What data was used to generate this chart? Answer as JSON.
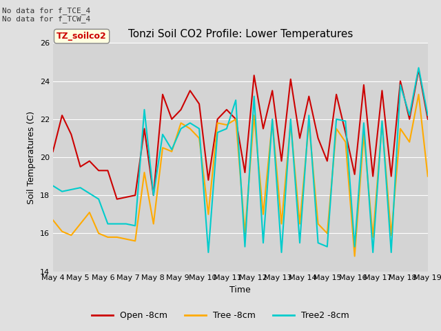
{
  "title": "Tonzi Soil CO2 Profile: Lower Temperatures",
  "xlabel": "Time",
  "ylabel": "Soil Temperatures (C)",
  "ylim": [
    14,
    26
  ],
  "yticks": [
    14,
    16,
    18,
    20,
    22,
    24,
    26
  ],
  "fig_bg_color": "#e0e0e0",
  "plot_bg_color": "#d4d4d4",
  "annotation_top_left": "No data for f_TCE_4\nNo data for f_TCW_4",
  "legend_label_box": "TZ_soilco2",
  "legend_entries": [
    "Open -8cm",
    "Tree -8cm",
    "Tree2 -8cm"
  ],
  "line_colors": [
    "#cc0000",
    "#ffaa00",
    "#00cccc"
  ],
  "xtick_labels": [
    "May 4",
    "May 5",
    "May 6",
    "May 7",
    "May 8",
    "May 9",
    "May 10",
    "May 11",
    "May 12",
    "May 13",
    "May 14",
    "May 15",
    "May 16",
    "May 17",
    "May 18",
    "May 19"
  ],
  "open_data": [
    20.3,
    22.2,
    21.2,
    19.5,
    19.8,
    19.3,
    19.3,
    17.8,
    17.9,
    18.0,
    21.5,
    18.0,
    23.3,
    22.0,
    22.5,
    23.5,
    22.8,
    18.8,
    22.0,
    22.5,
    22.0,
    19.2,
    24.3,
    21.5,
    23.5,
    19.8,
    24.1,
    21.0,
    23.2,
    21.0,
    19.8,
    23.3,
    21.3,
    19.1,
    23.8,
    19.0,
    23.5,
    19.0,
    24.0,
    22.0,
    24.6,
    22.0
  ],
  "tree_data": [
    16.7,
    16.1,
    15.9,
    16.5,
    17.1,
    16.0,
    15.8,
    15.8,
    15.7,
    15.6,
    19.2,
    16.5,
    20.5,
    20.3,
    21.8,
    21.5,
    21.0,
    17.0,
    21.8,
    21.7,
    22.0,
    16.0,
    22.2,
    17.0,
    21.9,
    16.5,
    21.8,
    16.5,
    21.8,
    16.5,
    16.0,
    21.5,
    20.8,
    14.8,
    21.2,
    15.8,
    21.8,
    15.9,
    21.5,
    20.8,
    23.3,
    19.0
  ],
  "tree2_data": [
    18.5,
    18.2,
    18.3,
    18.4,
    18.1,
    17.8,
    16.5,
    16.5,
    16.5,
    16.4,
    22.5,
    18.0,
    21.2,
    20.4,
    21.5,
    21.8,
    21.5,
    15.0,
    21.3,
    21.5,
    23.0,
    15.3,
    23.2,
    15.5,
    22.0,
    15.0,
    22.0,
    15.5,
    22.2,
    15.5,
    15.3,
    22.0,
    21.9,
    15.3,
    21.8,
    15.0,
    21.9,
    15.0,
    23.8,
    22.2,
    24.7,
    22.2
  ]
}
